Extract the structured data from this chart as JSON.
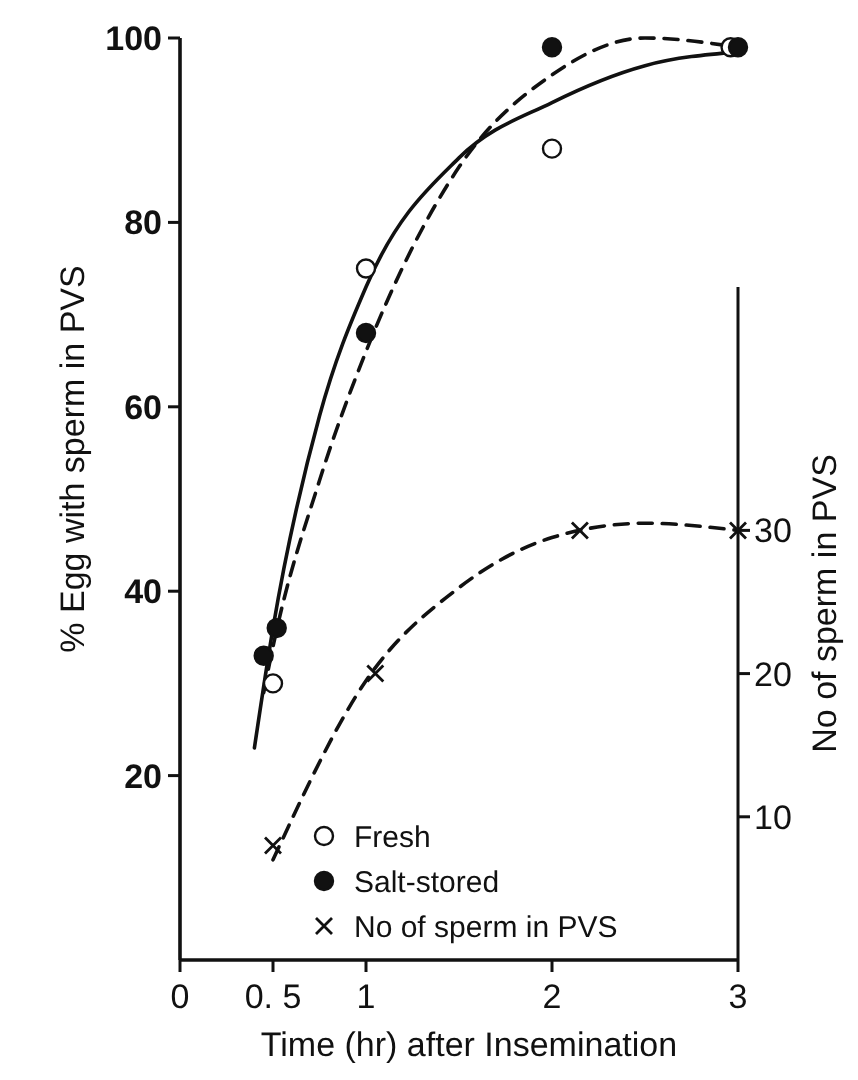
{
  "chart_data": {
    "type": "scatter",
    "xlabel": "Time (hr) after Insemination",
    "ylabel": "% Egg with sperm in PVS",
    "y2label": "No of sperm in PVS",
    "xlim": [
      0,
      3
    ],
    "xticks": [
      0,
      {
        "value": 0.5,
        "label": "0. 5"
      },
      1,
      2,
      3
    ],
    "ylim": [
      0,
      100
    ],
    "yticks": [
      20,
      40,
      60,
      80,
      100
    ],
    "y2lim": [
      0,
      47
    ],
    "y2ticks": [
      10,
      20,
      30
    ],
    "grid": false,
    "legend": "bottom",
    "series": [
      {
        "type": "line",
        "color": "#111111",
        "marker": "none",
        "line_style": "solid",
        "x": [
          0.4,
          0.5,
          0.75,
          1,
          1.5,
          2,
          2.5,
          3
        ],
        "values": [
          23,
          36,
          59,
          73,
          87,
          93,
          97,
          98.5
        ]
      },
      {
        "type": "line",
        "color": "#111111",
        "marker": "none",
        "line_style": "dashed",
        "x": [
          0.45,
          0.5,
          0.75,
          1,
          1.5,
          2,
          2.5,
          3
        ],
        "values": [
          29,
          34,
          52,
          66,
          86,
          96,
          100,
          99
        ]
      },
      {
        "type": "line",
        "color": "#111111",
        "marker": "none",
        "line_style": "dashed",
        "axis": "y2",
        "x": [
          0.5,
          1,
          1.5,
          2,
          2.5,
          3
        ],
        "values": [
          7,
          19.5,
          26,
          29.5,
          30.5,
          30
        ]
      },
      {
        "name": "Fresh",
        "color": "#ffffff",
        "marker": "circle",
        "x": [
          0.5,
          1,
          2,
          2.96
        ],
        "values": [
          30,
          75,
          88,
          99
        ]
      },
      {
        "name": "Salt-stored",
        "color": "#111111",
        "marker": "circle",
        "x": [
          0.45,
          0.52,
          1,
          2,
          3
        ],
        "values": [
          33,
          36,
          68,
          99,
          99
        ]
      },
      {
        "name": "No of sperm in PVS",
        "color": "#111111",
        "marker": "cross",
        "axis": "y2",
        "x": [
          0.5,
          1.05,
          2.15,
          3
        ],
        "values": [
          8,
          20,
          30,
          30
        ]
      }
    ]
  }
}
